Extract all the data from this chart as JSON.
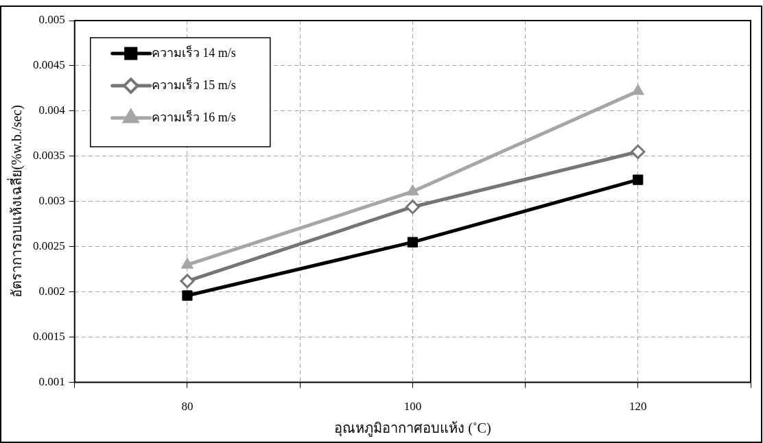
{
  "chart_data": {
    "type": "line",
    "xlabel": "อุณหภูมิอากาศอบแห้ง (˚C)",
    "ylabel": "อัตราการอบแห้งเฉลี่ย(%w.b./sec)",
    "x": [
      80,
      100,
      120
    ],
    "series": [
      {
        "name": "ความเร็ว 14 m/s",
        "color": "#000000",
        "marker": "square",
        "values": [
          0.00196,
          0.00255,
          0.00324
        ]
      },
      {
        "name": "ความเร็ว 15 m/s",
        "color": "#787374",
        "marker": "diamond",
        "values": [
          0.00212,
          0.00294,
          0.00355
        ]
      },
      {
        "name": "ความเร็ว 16 m/s",
        "color": "#a6a6a6",
        "marker": "triangle",
        "values": [
          0.0023,
          0.00311,
          0.00422
        ]
      }
    ],
    "xlim": [
      70,
      130
    ],
    "xticks": [
      {
        "value": 70,
        "label": null
      },
      80,
      {
        "value": 90,
        "label": null
      },
      100,
      {
        "value": 110,
        "label": null
      },
      120,
      {
        "value": 130,
        "label": null
      }
    ],
    "ylim": [
      0.001,
      0.005
    ],
    "yticks": [
      0.001,
      0.0015,
      0.002,
      0.0025,
      0.003,
      0.0035,
      0.004,
      0.0045,
      0.005
    ],
    "grid": true,
    "legend": "top left",
    "line_style": "solid"
  }
}
